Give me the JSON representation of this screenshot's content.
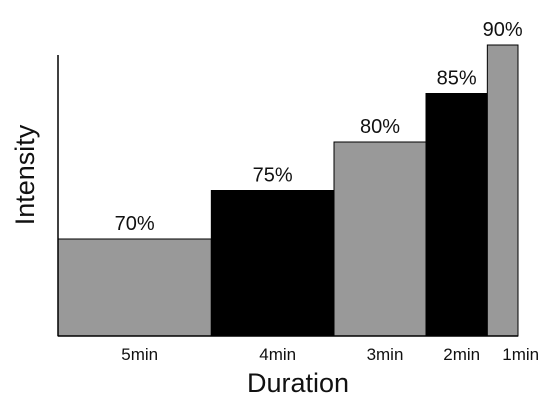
{
  "chart_data": {
    "type": "bar",
    "title": "",
    "xlabel": "Duration",
    "ylabel": "Intensity",
    "categories": [
      "5min",
      "4min",
      "3min",
      "2min",
      "1min"
    ],
    "durations_min": [
      5,
      4,
      3,
      2,
      1
    ],
    "values": [
      70,
      75,
      80,
      85,
      90
    ],
    "data_labels": [
      "70%",
      "75%",
      "80%",
      "85%",
      "90%"
    ],
    "ylim": [
      60,
      91
    ],
    "grid": false,
    "legend": "none",
    "colors": [
      "#999999",
      "#000000",
      "#999999",
      "#000000",
      "#999999"
    ]
  }
}
